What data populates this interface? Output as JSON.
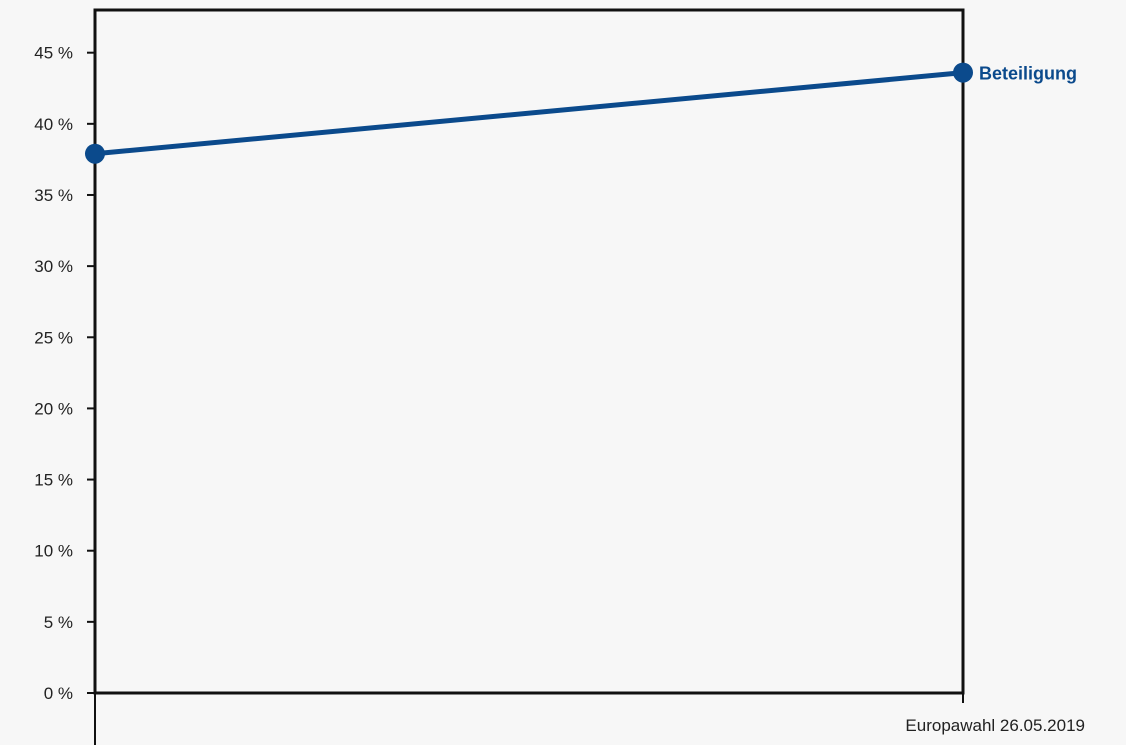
{
  "chart_data": {
    "type": "line",
    "title": "",
    "xlabel": "",
    "ylabel": "",
    "ylim": [
      0,
      48
    ],
    "y_ticks": [
      0,
      5,
      10,
      15,
      20,
      25,
      30,
      35,
      40,
      45
    ],
    "y_tick_labels": [
      "0 %",
      "5 %",
      "10 %",
      "15 %",
      "20 %",
      "25 %",
      "30 %",
      "35 %",
      "40 %",
      "45 %"
    ],
    "categories": [
      "",
      "Europawahl 26.05.2019"
    ],
    "grid": false,
    "series": [
      {
        "name": "Beteiligung",
        "values": [
          37.9,
          43.6
        ],
        "color": "#0b4a8c"
      }
    ]
  }
}
